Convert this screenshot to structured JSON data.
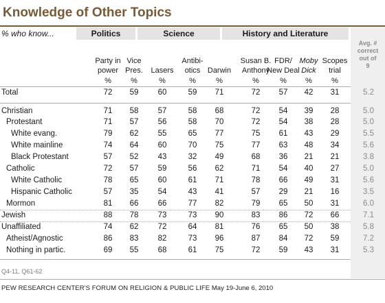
{
  "title": "Knowledge of Other Topics",
  "subtitle": "% who know...",
  "groups": {
    "politics": "Politics",
    "science": "Science",
    "history": "History and Literature"
  },
  "avg_header": [
    "Avg. #",
    "correct",
    "out of",
    "9"
  ],
  "columns": [
    {
      "lines": [
        "Party in",
        "power"
      ],
      "italic": false
    },
    {
      "lines": [
        "Vice",
        "Pres."
      ],
      "italic": false
    },
    {
      "lines": [
        "",
        "Lasers"
      ],
      "italic": false
    },
    {
      "lines": [
        "Antibi-",
        "otics"
      ],
      "italic": false
    },
    {
      "lines": [
        "",
        "Darwin"
      ],
      "italic": false
    },
    {
      "lines": [
        "Susan B.",
        "Anthony"
      ],
      "italic": false
    },
    {
      "lines": [
        "FDR/",
        "New Deal"
      ],
      "italic": false
    },
    {
      "lines": [
        "Moby",
        "Dick"
      ],
      "italic": true
    },
    {
      "lines": [
        "Scopes",
        "trial"
      ],
      "italic": false
    }
  ],
  "pct_symbol": "%",
  "rows": [
    {
      "label": "Total",
      "indent": 0,
      "values": [
        "72",
        "59",
        "60",
        "59",
        "71",
        "72",
        "57",
        "42",
        "31"
      ],
      "avg": "5.2"
    },
    {
      "label": "Christian",
      "indent": 0,
      "values": [
        "71",
        "58",
        "57",
        "58",
        "68",
        "72",
        "54",
        "39",
        "28"
      ],
      "avg": "5.0"
    },
    {
      "label": "Protestant",
      "indent": 1,
      "values": [
        "71",
        "57",
        "56",
        "58",
        "70",
        "72",
        "54",
        "38",
        "28"
      ],
      "avg": "5.0"
    },
    {
      "label": "White evang.",
      "indent": 2,
      "values": [
        "79",
        "62",
        "55",
        "65",
        "77",
        "75",
        "61",
        "43",
        "29"
      ],
      "avg": "5.5"
    },
    {
      "label": "White mainline",
      "indent": 2,
      "values": [
        "74",
        "64",
        "60",
        "70",
        "75",
        "77",
        "63",
        "48",
        "34"
      ],
      "avg": "5.6"
    },
    {
      "label": "Black Protestant",
      "indent": 2,
      "values": [
        "57",
        "52",
        "43",
        "32",
        "49",
        "68",
        "36",
        "21",
        "21"
      ],
      "avg": "3.8"
    },
    {
      "label": "Catholic",
      "indent": 1,
      "values": [
        "72",
        "57",
        "59",
        "56",
        "62",
        "71",
        "54",
        "40",
        "27"
      ],
      "avg": "5.0"
    },
    {
      "label": "White Catholic",
      "indent": 2,
      "values": [
        "78",
        "65",
        "60",
        "61",
        "71",
        "78",
        "66",
        "49",
        "31"
      ],
      "avg": "5.6"
    },
    {
      "label": "Hispanic Catholic",
      "indent": 2,
      "values": [
        "57",
        "35",
        "54",
        "43",
        "41",
        "57",
        "29",
        "21",
        "16"
      ],
      "avg": "3.5"
    },
    {
      "label": "Mormon",
      "indent": 1,
      "values": [
        "81",
        "66",
        "66",
        "77",
        "82",
        "79",
        "65",
        "50",
        "31"
      ],
      "avg": "6.0"
    },
    {
      "label": "Jewish",
      "indent": 0,
      "values": [
        "88",
        "78",
        "73",
        "73",
        "90",
        "83",
        "86",
        "72",
        "66"
      ],
      "avg": "7.1"
    },
    {
      "label": "Unaffiliated",
      "indent": 0,
      "values": [
        "74",
        "62",
        "72",
        "64",
        "81",
        "76",
        "65",
        "50",
        "38"
      ],
      "avg": "5.8"
    },
    {
      "label": "Atheist/Agnostic",
      "indent": 1,
      "values": [
        "86",
        "83",
        "82",
        "73",
        "96",
        "87",
        "84",
        "72",
        "59"
      ],
      "avg": "7.2"
    },
    {
      "label": "Nothing in partic.",
      "indent": 1,
      "values": [
        "69",
        "55",
        "68",
        "61",
        "75",
        "72",
        "59",
        "43",
        "31"
      ],
      "avg": "5.3"
    }
  ],
  "source": "Q4-11, Q61-62",
  "footer": {
    "org": "PEW RESEARCH CENTER'S FORUM ON RELIGION & PUBLIC LIFE",
    "date": "May 19-June 6, 2010"
  }
}
